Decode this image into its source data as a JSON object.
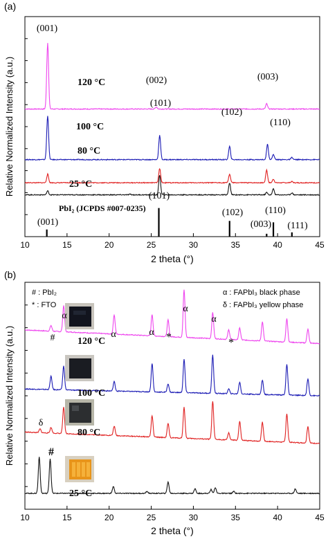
{
  "chart_data": [
    {
      "panel": "(a)",
      "type": "line",
      "xlabel": "2 theta (°)",
      "ylabel": "Relative Normalized Intensity (a.u.)",
      "xlim": [
        10,
        45
      ],
      "xticks": [
        10,
        15,
        20,
        25,
        30,
        35,
        40,
        45
      ],
      "series": [
        {
          "name": "120 °C",
          "color": "#ee44ee",
          "offset": 0.58,
          "amp": 0.3,
          "peaks": [
            [
              12.7,
              1.0
            ],
            [
              25.6,
              0.03
            ],
            [
              38.7,
              0.08
            ]
          ]
        },
        {
          "name": "100 °C",
          "color": "#1a1ab4",
          "offset": 0.35,
          "amp": 0.2,
          "peaks": [
            [
              12.7,
              1.0
            ],
            [
              26.0,
              0.55
            ],
            [
              34.3,
              0.3
            ],
            [
              38.8,
              0.35
            ],
            [
              39.5,
              0.12
            ],
            [
              41.7,
              0.05
            ]
          ]
        },
        {
          "name": "80 °C",
          "color": "#e02020",
          "offset": 0.245,
          "amp": 0.065,
          "peaks": [
            [
              12.7,
              0.6
            ],
            [
              26.0,
              1.0
            ],
            [
              34.3,
              0.6
            ],
            [
              38.7,
              0.9
            ],
            [
              39.5,
              0.25
            ],
            [
              41.7,
              0.08
            ]
          ]
        },
        {
          "name": "25 °C",
          "color": "#111111",
          "offset": 0.19,
          "amp": 0.09,
          "peaks": [
            [
              12.7,
              0.2
            ],
            [
              26.0,
              1.0
            ],
            [
              34.3,
              0.6
            ],
            [
              38.7,
              0.12
            ],
            [
              39.5,
              0.3
            ],
            [
              41.7,
              0.1
            ],
            [
              22.5,
              0.03
            ]
          ]
        }
      ],
      "reference": {
        "label": "PbI₂ (JCPDS #007-0235)",
        "lines": [
          [
            12.6,
            0.25
          ],
          [
            25.9,
            1.0
          ],
          [
            34.3,
            0.55
          ],
          [
            38.7,
            0.1
          ],
          [
            39.5,
            0.5
          ],
          [
            41.7,
            0.15
          ]
        ]
      },
      "annotations": [
        {
          "text": "(001)",
          "x": 12.7
        },
        {
          "text": "(002)",
          "x": 25.3
        },
        {
          "text": "(003)",
          "x": 38.6
        },
        {
          "text": "(101)",
          "x": 26.0
        },
        {
          "text": "(102)",
          "x": 34.3
        },
        {
          "text": "(110)",
          "x": 39.8
        },
        {
          "text": "(101)",
          "x": 25.9
        },
        {
          "text": "(001)",
          "x": 12.6
        },
        {
          "text": "(102)",
          "x": 34.3
        },
        {
          "text": "(110)",
          "x": 39.7
        },
        {
          "text": "(003)",
          "x": 38.5
        },
        {
          "text": "(111)",
          "x": 42.0
        }
      ]
    },
    {
      "panel": "(b)",
      "type": "line",
      "xlabel": "2 theta (°)",
      "ylabel": "Relative Normalized Intensity (a.u.)",
      "xlim": [
        10,
        45
      ],
      "xticks": [
        10,
        15,
        20,
        25,
        30,
        35,
        40,
        45
      ],
      "legend_left": [
        "# : PbI₂",
        "* : FTO"
      ],
      "legend_right": [
        "α : FAPbI₃ black phase",
        "δ : FAPbI₃ yellow phase"
      ],
      "series": [
        {
          "name": "120 °C",
          "color": "#ee44ee",
          "baseline": [
            0.79,
            0.73
          ],
          "amp": 0.21,
          "peaks": [
            [
              13.1,
              0.12
            ],
            [
              14.6,
              0.55
            ],
            [
              20.6,
              0.4
            ],
            [
              25.1,
              0.45
            ],
            [
              27.0,
              0.35
            ],
            [
              28.9,
              1.0
            ],
            [
              32.3,
              0.55
            ],
            [
              34.2,
              0.2
            ],
            [
              35.5,
              0.25
            ],
            [
              38.2,
              0.4
            ],
            [
              41.1,
              0.5
            ],
            [
              43.6,
              0.3
            ]
          ]
        },
        {
          "name": "100 °C",
          "color": "#1a1ab4",
          "baseline": [
            0.53,
            0.5
          ],
          "amp": 0.21,
          "peaks": [
            [
              13.1,
              0.28
            ],
            [
              14.6,
              0.5
            ],
            [
              20.6,
              0.2
            ],
            [
              25.1,
              0.6
            ],
            [
              27.0,
              0.18
            ],
            [
              28.9,
              0.7
            ],
            [
              32.3,
              0.8
            ],
            [
              34.2,
              0.1
            ],
            [
              35.5,
              0.25
            ],
            [
              38.2,
              0.3
            ],
            [
              41.1,
              0.65
            ],
            [
              43.6,
              0.35
            ]
          ]
        },
        {
          "name": "80 °C",
          "color": "#e02020",
          "baseline": [
            0.34,
            0.29
          ],
          "amp": 0.21,
          "peaks": [
            [
              11.8,
              0.08
            ],
            [
              13.1,
              0.12
            ],
            [
              14.6,
              0.55
            ],
            [
              20.6,
              0.2
            ],
            [
              25.1,
              0.45
            ],
            [
              27.0,
              0.3
            ],
            [
              28.9,
              0.65
            ],
            [
              32.3,
              0.8
            ],
            [
              34.2,
              0.15
            ],
            [
              35.5,
              0.4
            ],
            [
              38.2,
              0.4
            ],
            [
              41.1,
              0.6
            ],
            [
              43.6,
              0.35
            ]
          ]
        },
        {
          "name": "25 °C",
          "color": "#111111",
          "baseline": [
            0.07,
            0.07
          ],
          "amp": 0.17,
          "peaks": [
            [
              11.7,
              0.95
            ],
            [
              13.0,
              0.9
            ],
            [
              20.5,
              0.18
            ],
            [
              24.5,
              0.05
            ],
            [
              27.0,
              0.3
            ],
            [
              30.2,
              0.12
            ],
            [
              32.1,
              0.1
            ],
            [
              32.6,
              0.15
            ],
            [
              34.8,
              0.05
            ],
            [
              42.1,
              0.12
            ]
          ]
        }
      ],
      "annotations": [
        {
          "text": "#",
          "x": 13.2
        },
        {
          "text": "α",
          "x": 14.6
        },
        {
          "text": "α",
          "x": 20.6
        },
        {
          "text": "α",
          "x": 25.1
        },
        {
          "text": "*",
          "x": 27.0
        },
        {
          "text": "α",
          "x": 28.9
        },
        {
          "text": "α",
          "x": 32.3
        },
        {
          "text": "*",
          "x": 34.2
        },
        {
          "text": "δ",
          "x": 11.7
        },
        {
          "text": "#",
          "x": 13.1
        }
      ]
    }
  ]
}
